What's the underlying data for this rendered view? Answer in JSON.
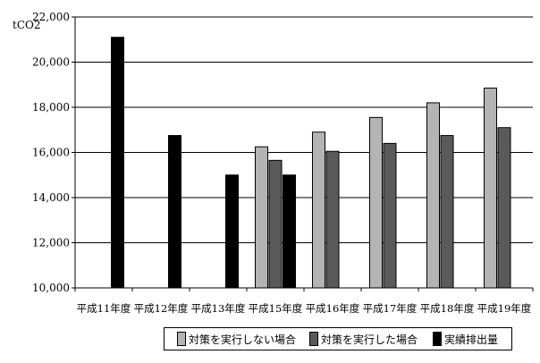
{
  "chart_data": {
    "type": "bar",
    "ylabel": "tCO2",
    "ylim": [
      10000,
      22000
    ],
    "yticks": [
      "10,000",
      "12,000",
      "14,000",
      "16,000",
      "18,000",
      "20,000",
      "22,000"
    ],
    "grid": true,
    "legend_position": "bottom",
    "categories": [
      "平成11年度",
      "平成12年度",
      "平成13年度",
      "平成15年度",
      "平成16年度",
      "平成17年度",
      "平成18年度",
      "平成19年度"
    ],
    "series": [
      {
        "name": "対策を実行しない場合",
        "color": "#b4b4b4",
        "values": [
          null,
          null,
          null,
          16250,
          16900,
          17550,
          18200,
          18850
        ]
      },
      {
        "name": "対策を実行した場合",
        "color": "#5a5a5a",
        "values": [
          null,
          null,
          null,
          15650,
          16050,
          16400,
          16750,
          17100
        ]
      },
      {
        "name": "実績排出量",
        "color": "#000000",
        "values": [
          21100,
          16750,
          null,
          15000,
          null,
          null,
          null,
          null
        ]
      }
    ],
    "extra_bars": [
      {
        "category_index": 2,
        "series_index": 2,
        "value": 15000
      }
    ]
  }
}
